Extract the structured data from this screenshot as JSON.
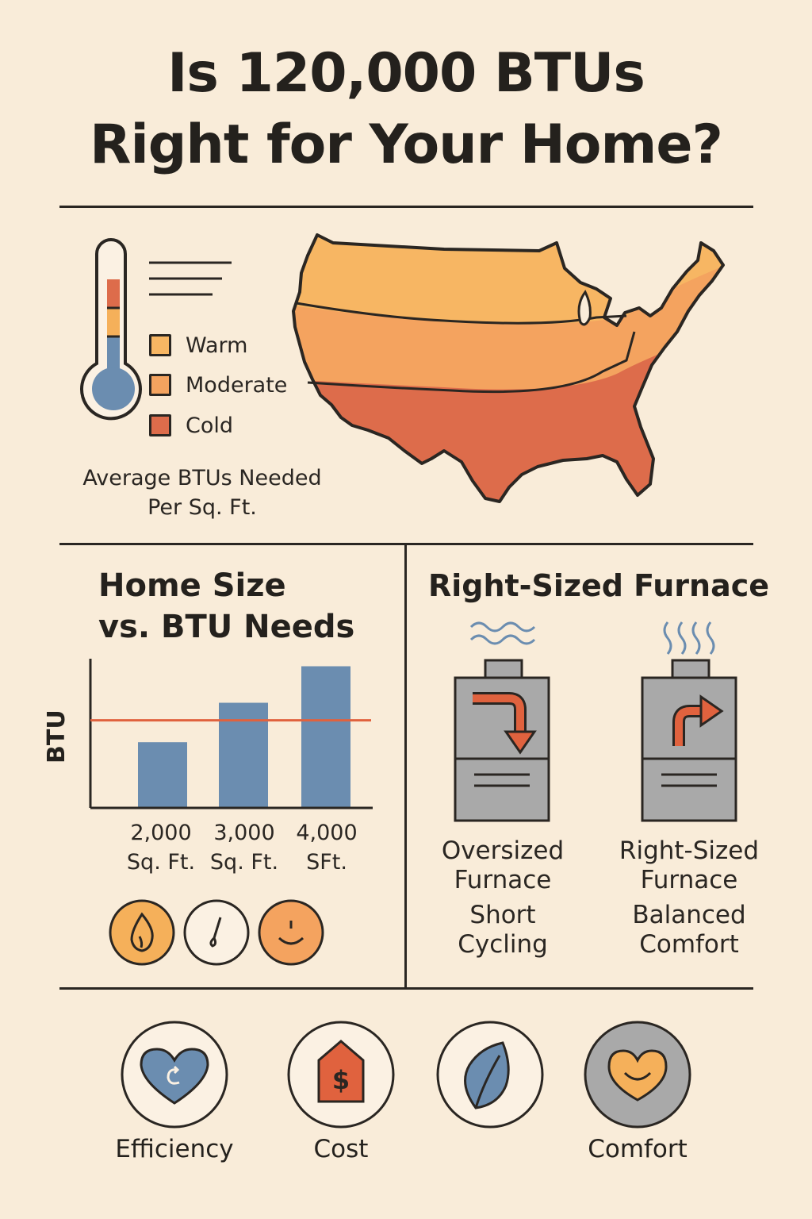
{
  "title": {
    "line1": "Is 120,000 BTUs",
    "line2": "Right for Your Home?"
  },
  "climate": {
    "legend": [
      {
        "label": "Warm",
        "color": "#f7b663"
      },
      {
        "label": "Moderate",
        "color": "#f4a35f"
      },
      {
        "label": "Cold",
        "color": "#dd6c4b"
      }
    ],
    "caption_line1": "Average BTUs Needed",
    "caption_line2": "Per Sq. Ft."
  },
  "home_size": {
    "title_line1": "Home Size",
    "title_line2": "vs. BTU Needs",
    "icons": [
      "flame-icon",
      "gauge-icon",
      "smile-icon"
    ]
  },
  "chart_data": {
    "type": "bar",
    "ylabel": "BTU",
    "xlabel": "",
    "categories": [
      {
        "line1": "2,000",
        "line2": "Sq. Ft."
      },
      {
        "line1": "3,000",
        "line2": "Sq. Ft."
      },
      {
        "line1": "4,000",
        "line2": "SFt."
      }
    ],
    "values": [
      45,
      72,
      97
    ],
    "reference_line": 60,
    "ylim": [
      0,
      100
    ],
    "grid": false,
    "bar_color": "#6b8db0",
    "reference_color": "#e0623e"
  },
  "furnace": {
    "title": "Right-Sized Furnace",
    "items": [
      {
        "name_line1": "Oversized",
        "name_line2": "Furnace",
        "desc_line1": "Short",
        "desc_line2": "Cycling"
      },
      {
        "name_line1": "Right-Sized",
        "name_line2": "Furnace",
        "desc_line1": "Balanced",
        "desc_line2": "Comfort"
      }
    ]
  },
  "benefits": [
    {
      "label": "Efficiency",
      "icon": "heart-icon"
    },
    {
      "label": "Cost",
      "icon": "price-tag-icon"
    },
    {
      "label": "",
      "icon": "leaf-icon"
    },
    {
      "label": "Comfort",
      "icon": "smiling-heart-icon"
    }
  ],
  "colors": {
    "background": "#f9ecd9",
    "ink": "#2a2622",
    "blue": "#6b8db0",
    "orange": "#e0623e",
    "amber": "#f5b05a",
    "gray": "#a9a9a9"
  }
}
